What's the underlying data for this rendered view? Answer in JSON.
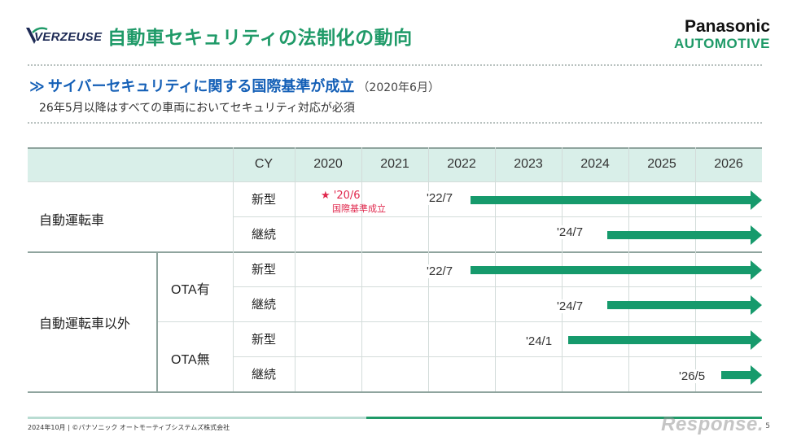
{
  "header": {
    "logo_text": "VERZEUSE",
    "title": "自動車セキュリティの法制化の動向",
    "brand_line1": "Panasonic",
    "brand_line2": "AUTOMOTIVE"
  },
  "section": {
    "arrow": "≫",
    "heading": "サイバーセキュリティに関する国際基準が成立",
    "date": "（2020年6月）",
    "note": "26年5月以降はすべての車両においてセキュリティ対応が必須"
  },
  "table": {
    "cy_label": "CY",
    "years": [
      "2020",
      "2021",
      "2022",
      "2023",
      "2024",
      "2025",
      "2026"
    ],
    "categories": {
      "autonomous": "自動運転車",
      "non_autonomous": "自動運転車以外",
      "ota_yes": "OTA有",
      "ota_no": "OTA無"
    },
    "rows": [
      {
        "label": "新型",
        "start": "'22/7"
      },
      {
        "label": "継続",
        "start": "'24/7"
      },
      {
        "label": "新型",
        "start": "'22/7"
      },
      {
        "label": "継続",
        "start": "'24/7"
      },
      {
        "label": "新型",
        "start": "'24/1"
      },
      {
        "label": "継続",
        "start": "'26/5"
      }
    ],
    "milestone": {
      "star": "★",
      "date": "'20/6",
      "label": "国際基準成立"
    }
  },
  "footer": {
    "text": "2024年10月 | ©パナソニック オートモーティブシステムズ株式会社",
    "watermark": "Response.",
    "page_number": "5"
  },
  "colors": {
    "accent_green": "#1f9a68",
    "bar_green": "#169a6c",
    "heading_blue": "#1560b7",
    "milestone_red": "#e0284d",
    "header_band": "#d9efe9"
  }
}
